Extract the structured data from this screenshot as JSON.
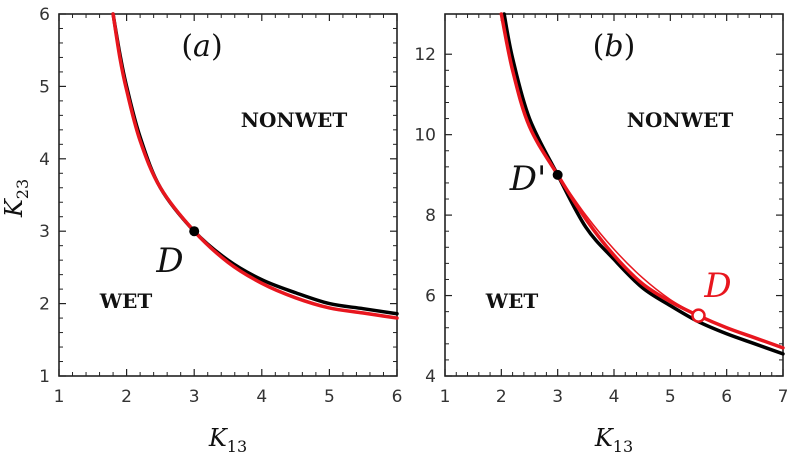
{
  "chart_data": [
    {
      "type": "line",
      "panel": "(a)",
      "panel_letter": "a",
      "xlabel_main": "K",
      "xlabel_sub": "13",
      "ylabel_main": "K",
      "ylabel_sub": "23",
      "xlim": [
        1,
        6
      ],
      "ylim": [
        1,
        6
      ],
      "xticks": [
        "1",
        "2",
        "3",
        "4",
        "5",
        "6"
      ],
      "yticks": [
        "1",
        "2",
        "3",
        "4",
        "5",
        "6"
      ],
      "regions": [
        "NONWET",
        "WET"
      ],
      "series": [
        {
          "name": "black curve",
          "color": "#000000",
          "x": [
            1.8,
            1.9,
            2.0,
            2.2,
            2.5,
            3.0,
            3.5,
            4.0,
            4.5,
            5.0,
            5.5,
            6.0
          ],
          "y": [
            6.0,
            5.45,
            5.0,
            4.3,
            3.6,
            3.0,
            2.6,
            2.33,
            2.15,
            2.0,
            1.93,
            1.86
          ]
        },
        {
          "name": "red curve",
          "color": "#e8161e",
          "x": [
            1.8,
            1.9,
            2.0,
            2.2,
            2.5,
            3.0,
            3.5,
            4.0,
            4.5,
            5.0,
            5.5,
            6.0
          ],
          "y": [
            6.0,
            5.4,
            4.95,
            4.25,
            3.6,
            3.0,
            2.57,
            2.28,
            2.08,
            1.94,
            1.87,
            1.8
          ]
        }
      ],
      "points": [
        {
          "label": "D",
          "x": 3.0,
          "y": 3.0,
          "marker": "filled",
          "color": "#000000"
        }
      ]
    },
    {
      "type": "line",
      "panel": "(b)",
      "panel_letter": "b",
      "xlabel_main": "K",
      "xlabel_sub": "13",
      "xlim": [
        1,
        7
      ],
      "ylim": [
        4,
        13
      ],
      "xticks": [
        "1",
        "2",
        "3",
        "4",
        "5",
        "6",
        "7"
      ],
      "yticks": [
        "4",
        "6",
        "8",
        "10",
        "12"
      ],
      "regions": [
        "NONWET",
        "WET"
      ],
      "series": [
        {
          "name": "black curve",
          "color": "#000000",
          "width": 3.5,
          "x": [
            2.05,
            2.2,
            2.5,
            3.0,
            3.5,
            4.0,
            4.5,
            5.0,
            5.5,
            6.0,
            6.5,
            7.0
          ],
          "y": [
            13.0,
            11.9,
            10.4,
            9.0,
            7.7,
            6.9,
            6.2,
            5.75,
            5.35,
            5.05,
            4.8,
            4.55
          ]
        },
        {
          "name": "red thick curve",
          "color": "#e8161e",
          "width": 3.5,
          "x": [
            2.0,
            2.2,
            2.5,
            3.0,
            3.5,
            4.0,
            4.5,
            5.0,
            5.5,
            6.0,
            6.5,
            7.0
          ],
          "y": [
            13.0,
            11.6,
            10.2,
            9.0,
            7.9,
            7.0,
            6.3,
            5.85,
            5.5,
            5.2,
            4.95,
            4.7
          ]
        },
        {
          "name": "red thin curve",
          "color": "#e8161e",
          "width": 1.5,
          "x": [
            3.0,
            3.5,
            4.0,
            4.5,
            5.0,
            5.5
          ],
          "y": [
            9.0,
            8.0,
            7.15,
            6.45,
            5.9,
            5.5
          ]
        }
      ],
      "points": [
        {
          "label": "D'",
          "x": 3.0,
          "y": 9.0,
          "marker": "filled",
          "color": "#000000"
        },
        {
          "label": "D",
          "x": 5.5,
          "y": 5.5,
          "marker": "open",
          "color": "#e8161e"
        }
      ]
    }
  ]
}
